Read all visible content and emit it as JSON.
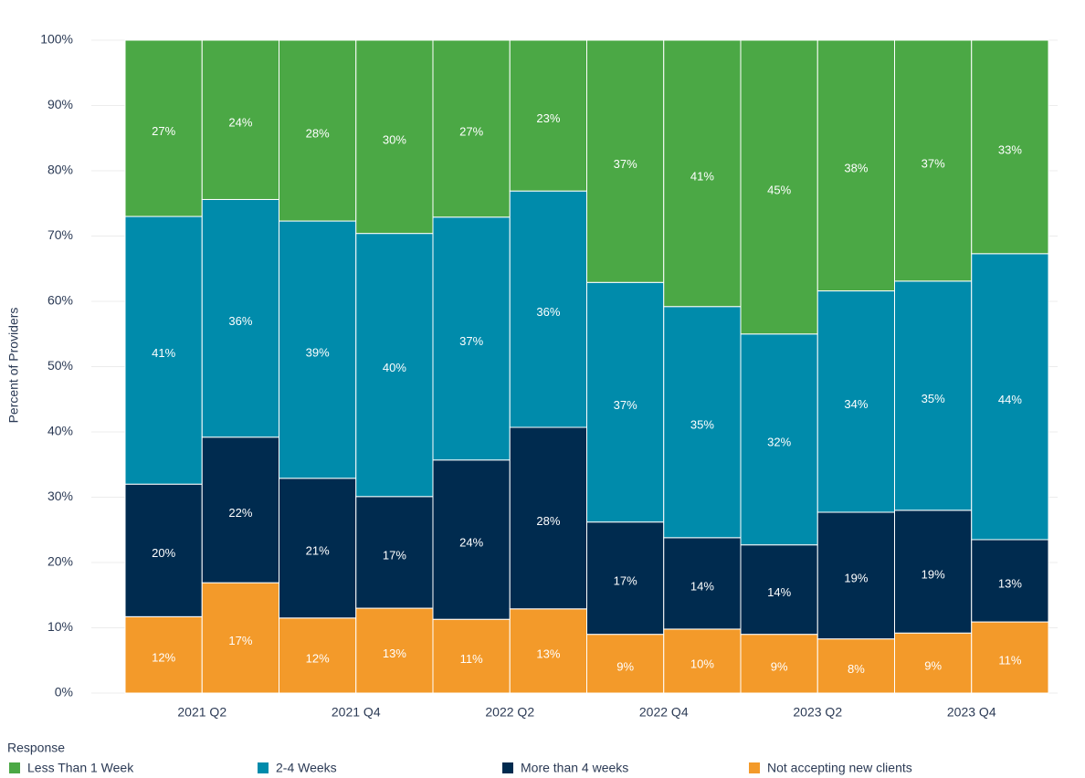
{
  "chart_data": {
    "type": "stacked_bar",
    "y_label": "Percent of Providers",
    "legend_title": "Response",
    "categories": [
      null,
      "2021 Q2",
      null,
      "2021 Q4",
      null,
      "2022 Q2",
      null,
      "2022 Q4",
      null,
      "2023 Q2",
      null,
      "2023 Q4"
    ],
    "series": [
      {
        "name": "Less Than 1 Week",
        "color": "#4ba845",
        "values": [
          27.0,
          24.4,
          27.7,
          29.6,
          27.1,
          23.1,
          37.1,
          40.8,
          45.0,
          38.4,
          36.9,
          32.7
        ],
        "value_labels": [
          "27%",
          "24%",
          "28%",
          "30%",
          "27%",
          "23%",
          "37%",
          "41%",
          "45%",
          "38%",
          "37%",
          "33%"
        ]
      },
      {
        "name": "2-4 Weeks",
        "color": "#008bab",
        "values": [
          41.0,
          36.4,
          39.4,
          40.3,
          37.2,
          36.2,
          36.7,
          35.4,
          32.3,
          33.9,
          35.1,
          43.8
        ],
        "value_labels": [
          "41%",
          "36%",
          "39%",
          "40%",
          "37%",
          "36%",
          "37%",
          "35%",
          "32%",
          "34%",
          "35%",
          "44%"
        ]
      },
      {
        "name": "More than 4 weeks",
        "color": "#002b4f",
        "values": [
          20.3,
          22.3,
          21.4,
          17.1,
          24.4,
          27.8,
          17.2,
          14.0,
          13.7,
          19.4,
          18.8,
          12.6
        ],
        "value_labels": [
          "20%",
          "22%",
          "21%",
          "17%",
          "24%",
          "28%",
          "17%",
          "14%",
          "14%",
          "19%",
          "19%",
          "13%"
        ]
      },
      {
        "name": "Not accepting new clients",
        "color": "#f39a2a",
        "values": [
          11.7,
          16.9,
          11.5,
          13.0,
          11.3,
          12.9,
          9.0,
          9.8,
          9.0,
          8.3,
          9.2,
          10.9
        ],
        "value_labels": [
          "12%",
          "17%",
          "12%",
          "13%",
          "11%",
          "13%",
          "9%",
          "10%",
          "9%",
          "8%",
          "9%",
          "11%"
        ]
      }
    ],
    "ylim": [
      0,
      100
    ],
    "yticks": [
      {
        "value": 0,
        "label": "0%"
      },
      {
        "value": 10,
        "label": "10%"
      },
      {
        "value": 20,
        "label": "20%"
      },
      {
        "value": 30,
        "label": "30%"
      },
      {
        "value": 40,
        "label": "40%"
      },
      {
        "value": 50,
        "label": "50%"
      },
      {
        "value": 60,
        "label": "60%"
      },
      {
        "value": 70,
        "label": "70%"
      },
      {
        "value": 80,
        "label": "80%"
      },
      {
        "value": 90,
        "label": "90%"
      },
      {
        "value": 100,
        "label": "100%"
      }
    ],
    "grid": true,
    "legend_position": "bottom"
  }
}
